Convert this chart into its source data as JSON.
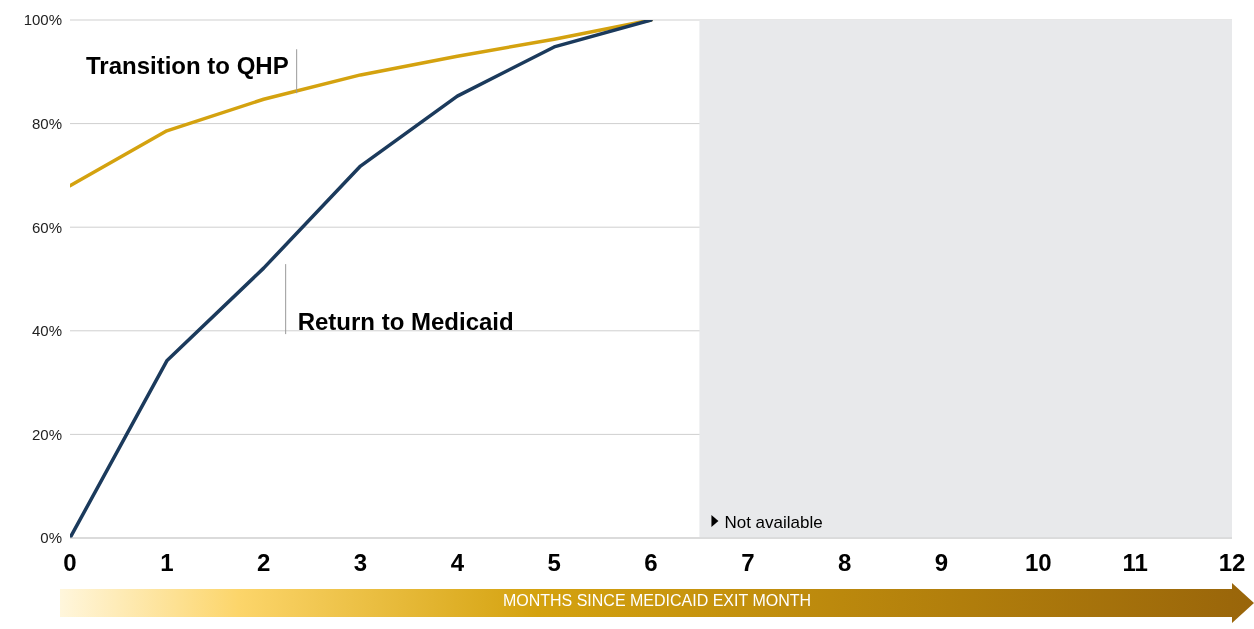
{
  "chart_data": {
    "type": "line",
    "xlabel": "MONTHS SINCE MEDICAID EXIT MONTH",
    "x": [
      0,
      1,
      2,
      3,
      4,
      5,
      6
    ],
    "series": [
      {
        "name": "Transition to QHP",
        "color": "#d4a20f",
        "values": [
          68,
          78.6,
          84.7,
          89.4,
          93,
          96.3,
          100
        ]
      },
      {
        "name": "Return to Medicaid",
        "color": "#1b3a5c",
        "values": [
          0,
          34.2,
          52.1,
          71.8,
          85.3,
          94.8,
          100
        ]
      }
    ],
    "xlim": [
      0,
      12
    ],
    "xticks": [
      0,
      1,
      2,
      3,
      4,
      5,
      6,
      7,
      8,
      9,
      10,
      11,
      12
    ],
    "ylim": [
      0,
      100
    ],
    "yticks": [
      {
        "value": 0,
        "label": "0%"
      },
      {
        "value": 20,
        "label": "20%"
      },
      {
        "value": 40,
        "label": "40%"
      },
      {
        "value": 60,
        "label": "60%"
      },
      {
        "value": 80,
        "label": "80%"
      },
      {
        "value": 100,
        "label": "100%"
      }
    ],
    "bands": [
      {
        "axis": "x",
        "from": 6.5,
        "to": 12,
        "label": "Not available",
        "color": "#e8e9eb"
      }
    ],
    "grid": "y",
    "legend": false,
    "marker": "none",
    "line_style": "solid"
  }
}
